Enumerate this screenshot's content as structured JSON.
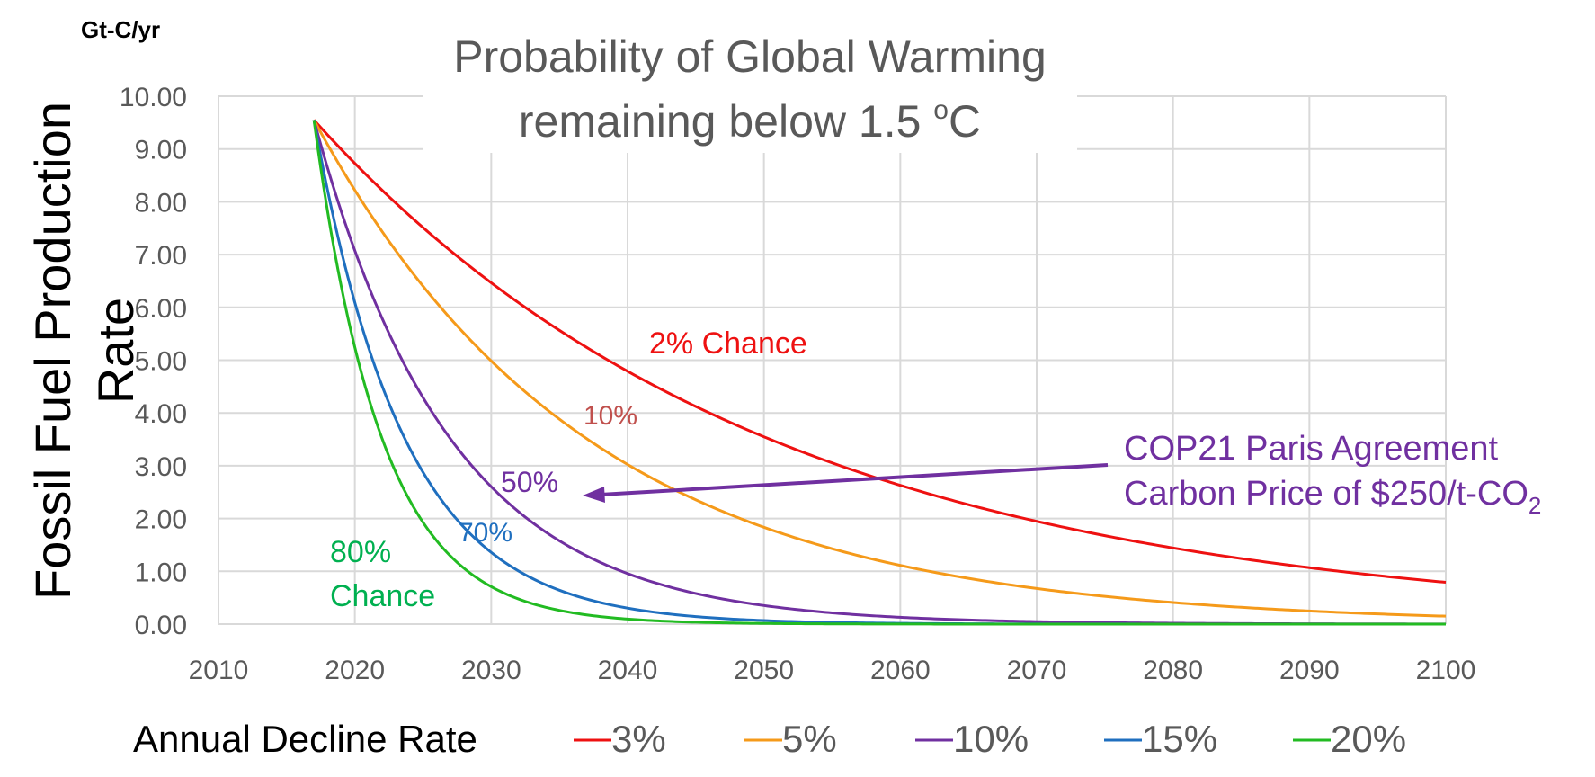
{
  "chart_data": {
    "type": "line",
    "title_line1": "Probability of Global Warming",
    "title_line2_main": "remaining below 1.5 ",
    "title_line2_sup": "o",
    "title_line2_end": "C",
    "ylabel": "Fossil Fuel Production Rate",
    "yunit": "Gt-C/yr",
    "xlabel": "",
    "xlim": [
      2010,
      2100
    ],
    "ylim": [
      0,
      10
    ],
    "xticks": [
      "2010",
      "2020",
      "2030",
      "2040",
      "2050",
      "2060",
      "2070",
      "2080",
      "2090",
      "2100"
    ],
    "yticks": [
      "0.00",
      "1.00",
      "2.00",
      "3.00",
      "4.00",
      "5.00",
      "6.00",
      "7.00",
      "8.00",
      "9.00",
      "10.00"
    ],
    "grid": true,
    "legend_title": "Annual Decline Rate",
    "legend_position": "bottom",
    "start_year": 2017,
    "start_value": 9.55,
    "series": [
      {
        "name": "3%",
        "rate": 0.03,
        "color": "#ee1111"
      },
      {
        "name": "5%",
        "rate": 0.05,
        "color": "#f59a1a"
      },
      {
        "name": "10%",
        "rate": 0.1,
        "color": "#7030a0"
      },
      {
        "name": "15%",
        "rate": 0.15,
        "color": "#1f6fbf"
      },
      {
        "name": "20%",
        "rate": 0.2,
        "color": "#22bb22"
      }
    ],
    "annotations": {
      "a3": "2% Chance",
      "a5": "10%",
      "a10": "50%",
      "a15": "70%",
      "a20_l1": "80%",
      "a20_l2": "Chance",
      "cop_l1": "COP21 Paris Agreement",
      "cop_l2_main": "Carbon Price of $250/t-CO",
      "cop_l2_sub": "2"
    },
    "annotation_colors": {
      "a3": "#ee1111",
      "a5": "#c0504d",
      "a10": "#7030a0",
      "a15": "#1f6fbf",
      "a20": "#00b050",
      "cop": "#7030a0"
    }
  }
}
